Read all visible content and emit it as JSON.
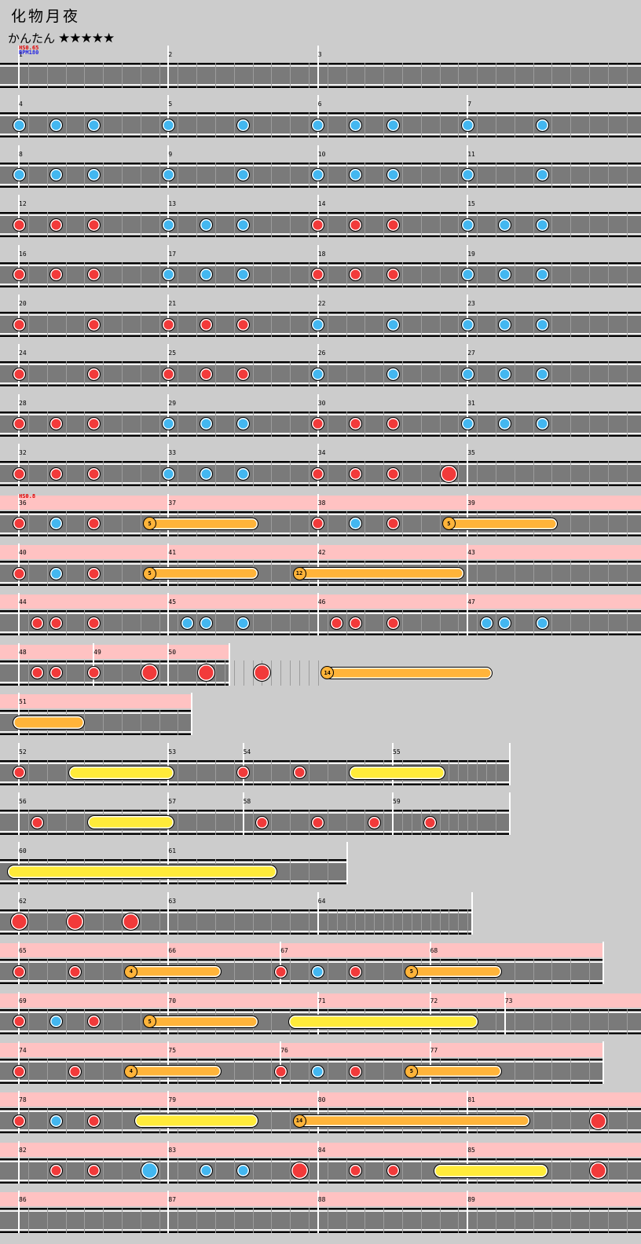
{
  "song": {
    "title": "化物月夜",
    "difficulty": "かんたん",
    "stars": "★★★★★"
  },
  "colors": {
    "don": "#f23a3a",
    "ka": "#43b7f0",
    "roll": "#ffeb3a",
    "balloon": "#ffb43a",
    "gogo": "#ffc2c2"
  },
  "rows": [
    {
      "bars": [
        1,
        2,
        3
      ],
      "events": [
        {
          "text": "HS0.65",
          "color": "#e00000"
        },
        {
          "text": "BPM180",
          "color": "#2020e0"
        }
      ],
      "notes": []
    },
    {
      "bars": [
        4,
        5,
        6,
        7
      ],
      "notes": [
        {
          "t": "k",
          "b": 0
        },
        {
          "t": "k",
          "b": 2
        },
        {
          "t": "k",
          "b": 4
        },
        {
          "t": "k",
          "b": 8
        },
        {
          "t": "k",
          "b": 12
        },
        {
          "t": "k",
          "b": 16
        },
        {
          "t": "k",
          "b": 18
        },
        {
          "t": "k",
          "b": 20
        },
        {
          "t": "k",
          "b": 24
        },
        {
          "t": "k",
          "b": 28
        }
      ]
    },
    {
      "bars": [
        8,
        9,
        10,
        11
      ],
      "notes": [
        {
          "t": "k",
          "b": 0
        },
        {
          "t": "k",
          "b": 2
        },
        {
          "t": "k",
          "b": 4
        },
        {
          "t": "k",
          "b": 8
        },
        {
          "t": "k",
          "b": 12
        },
        {
          "t": "k",
          "b": 16
        },
        {
          "t": "k",
          "b": 18
        },
        {
          "t": "k",
          "b": 20
        },
        {
          "t": "k",
          "b": 24
        },
        {
          "t": "k",
          "b": 28
        }
      ]
    },
    {
      "bars": [
        12,
        13,
        14,
        15
      ],
      "notes": [
        {
          "t": "d",
          "b": 0
        },
        {
          "t": "d",
          "b": 2
        },
        {
          "t": "d",
          "b": 4
        },
        {
          "t": "k",
          "b": 8
        },
        {
          "t": "k",
          "b": 10
        },
        {
          "t": "k",
          "b": 12
        },
        {
          "t": "d",
          "b": 16
        },
        {
          "t": "d",
          "b": 18
        },
        {
          "t": "d",
          "b": 20
        },
        {
          "t": "k",
          "b": 24
        },
        {
          "t": "k",
          "b": 26
        },
        {
          "t": "k",
          "b": 28
        }
      ]
    },
    {
      "bars": [
        16,
        17,
        18,
        19
      ],
      "notes": [
        {
          "t": "d",
          "b": 0
        },
        {
          "t": "d",
          "b": 2
        },
        {
          "t": "d",
          "b": 4
        },
        {
          "t": "k",
          "b": 8
        },
        {
          "t": "k",
          "b": 10
        },
        {
          "t": "k",
          "b": 12
        },
        {
          "t": "d",
          "b": 16
        },
        {
          "t": "d",
          "b": 18
        },
        {
          "t": "d",
          "b": 20
        },
        {
          "t": "k",
          "b": 24
        },
        {
          "t": "k",
          "b": 26
        },
        {
          "t": "k",
          "b": 28
        }
      ]
    },
    {
      "bars": [
        20,
        21,
        22,
        23
      ],
      "notes": [
        {
          "t": "d",
          "b": 0
        },
        {
          "t": "d",
          "b": 4
        },
        {
          "t": "d",
          "b": 8
        },
        {
          "t": "d",
          "b": 10
        },
        {
          "t": "d",
          "b": 12
        },
        {
          "t": "k",
          "b": 16
        },
        {
          "t": "k",
          "b": 20
        },
        {
          "t": "k",
          "b": 24
        },
        {
          "t": "k",
          "b": 26
        },
        {
          "t": "k",
          "b": 28
        }
      ]
    },
    {
      "bars": [
        24,
        25,
        26,
        27
      ],
      "notes": [
        {
          "t": "d",
          "b": 0
        },
        {
          "t": "d",
          "b": 4
        },
        {
          "t": "d",
          "b": 8
        },
        {
          "t": "d",
          "b": 10
        },
        {
          "t": "d",
          "b": 12
        },
        {
          "t": "k",
          "b": 16
        },
        {
          "t": "k",
          "b": 20
        },
        {
          "t": "k",
          "b": 24
        },
        {
          "t": "k",
          "b": 26
        },
        {
          "t": "k",
          "b": 28
        }
      ]
    },
    {
      "bars": [
        28,
        29,
        30,
        31
      ],
      "notes": [
        {
          "t": "d",
          "b": 0
        },
        {
          "t": "d",
          "b": 2
        },
        {
          "t": "d",
          "b": 4
        },
        {
          "t": "k",
          "b": 8
        },
        {
          "t": "k",
          "b": 10
        },
        {
          "t": "k",
          "b": 12
        },
        {
          "t": "d",
          "b": 16
        },
        {
          "t": "d",
          "b": 18
        },
        {
          "t": "d",
          "b": 20
        },
        {
          "t": "k",
          "b": 24
        },
        {
          "t": "k",
          "b": 26
        },
        {
          "t": "k",
          "b": 28
        }
      ]
    },
    {
      "bars": [
        32,
        33,
        34,
        35
      ],
      "notes": [
        {
          "t": "d",
          "b": 0
        },
        {
          "t": "d",
          "b": 2
        },
        {
          "t": "d",
          "b": 4
        },
        {
          "t": "k",
          "b": 8
        },
        {
          "t": "k",
          "b": 10
        },
        {
          "t": "k",
          "b": 12
        },
        {
          "t": "d",
          "b": 16
        },
        {
          "t": "d",
          "b": 18
        },
        {
          "t": "d",
          "b": 20
        },
        {
          "t": "D",
          "b": 23
        }
      ]
    },
    {
      "bars": [
        36,
        37,
        38,
        39
      ],
      "gogo": true,
      "events": [
        {
          "text": "HS0.8",
          "color": "#e00000"
        }
      ],
      "notes": [
        {
          "t": "d",
          "b": 0
        },
        {
          "t": "k",
          "b": 2
        },
        {
          "t": "d",
          "b": 4
        },
        {
          "t": "balloon",
          "b": 7,
          "end": 12.5,
          "count": "5"
        },
        {
          "t": "d",
          "b": 16
        },
        {
          "t": "k",
          "b": 18
        },
        {
          "t": "d",
          "b": 20
        },
        {
          "t": "balloon",
          "b": 23,
          "end": 28.5,
          "count": "5"
        }
      ]
    },
    {
      "bars": [
        40,
        41,
        42,
        43
      ],
      "gogo": true,
      "notes": [
        {
          "t": "d",
          "b": 0
        },
        {
          "t": "k",
          "b": 2
        },
        {
          "t": "d",
          "b": 4
        },
        {
          "t": "balloon",
          "b": 7,
          "end": 12.5,
          "count": "5"
        },
        {
          "t": "balloon",
          "b": 15,
          "end": 23.5,
          "count": "12"
        }
      ]
    },
    {
      "bars": [
        44,
        45,
        46,
        47
      ],
      "gogo": true,
      "notes": [
        {
          "t": "d",
          "b": 1
        },
        {
          "t": "d",
          "b": 2
        },
        {
          "t": "d",
          "b": 4
        },
        {
          "t": "k",
          "b": 9
        },
        {
          "t": "k",
          "b": 10
        },
        {
          "t": "k",
          "b": 12
        },
        {
          "t": "d",
          "b": 17
        },
        {
          "t": "d",
          "b": 18
        },
        {
          "t": "d",
          "b": 20
        },
        {
          "t": "k",
          "b": 25
        },
        {
          "t": "k",
          "b": 26
        },
        {
          "t": "k",
          "b": 28
        }
      ]
    },
    {
      "bars": [
        48,
        49,
        50
      ],
      "gogo": true,
      "lengths": [
        4,
        4,
        0
      ],
      "rowBeats": 11.2,
      "dense": [
        [
          9.5,
          16
        ]
      ],
      "notes": [
        {
          "t": "d",
          "b": 1
        },
        {
          "t": "d",
          "b": 2
        },
        {
          "t": "d",
          "b": 4
        },
        {
          "t": "D",
          "b": 7
        },
        {
          "t": "D",
          "b": 10
        },
        {
          "t": "D",
          "b": 13
        },
        {
          "t": "balloon",
          "b": 16.5,
          "end": 25,
          "count": "14"
        }
      ]
    },
    {
      "bars": [
        51
      ],
      "gogo": true,
      "rowBeats": 9.2,
      "notes": [
        {
          "t": "oroll",
          "b": 0,
          "end": 3.2
        }
      ]
    },
    {
      "bars": [
        52,
        53,
        54,
        55
      ],
      "lengths": [
        8,
        4,
        8,
        5
      ],
      "rowBeats": 26.2,
      "dense": [
        [
          22,
          25
        ]
      ],
      "notes": [
        {
          "t": "d",
          "b": 0
        },
        {
          "t": "yroll",
          "b": 3,
          "end": 8
        },
        {
          "t": "d",
          "b": 12
        },
        {
          "t": "d",
          "b": 15
        },
        {
          "t": "yroll",
          "b": 18,
          "end": 22.5
        }
      ]
    },
    {
      "bars": [
        56,
        57,
        58,
        59
      ],
      "lengths": [
        8,
        4,
        8,
        5
      ],
      "rowBeats": 26.2,
      "dense": [
        [
          20.5,
          24.5
        ]
      ],
      "notes": [
        {
          "t": "d",
          "b": 1
        },
        {
          "t": "yroll",
          "b": 4,
          "end": 8
        },
        {
          "t": "d",
          "b": 13
        },
        {
          "t": "d",
          "b": 16
        },
        {
          "t": "d",
          "b": 19
        },
        {
          "t": "d",
          "b": 22
        }
      ]
    },
    {
      "bars": [
        60,
        61
      ],
      "lengths": [
        8,
        0
      ],
      "rowBeats": 17.5,
      "notes": [
        {
          "t": "yroll",
          "b": -0.3,
          "end": 13.5
        }
      ]
    },
    {
      "bars": [
        62,
        63,
        64
      ],
      "lengths": [
        8,
        8,
        8
      ],
      "rowBeats": 24.2,
      "dense": [
        [
          16.5,
          24
        ]
      ],
      "notes": [
        {
          "t": "D",
          "b": 0
        },
        {
          "t": "D",
          "b": 3
        },
        {
          "t": "D",
          "b": 6
        }
      ]
    },
    {
      "bars": [
        65,
        66,
        67,
        68
      ],
      "gogo": true,
      "lengths": [
        8,
        6,
        8,
        8
      ],
      "rowBeats": 31.2,
      "notes": [
        {
          "t": "d",
          "b": 0
        },
        {
          "t": "d",
          "b": 3
        },
        {
          "t": "balloon",
          "b": 6,
          "end": 10.5,
          "count": "4"
        },
        {
          "t": "d",
          "b": 14
        },
        {
          "t": "k",
          "b": 16
        },
        {
          "t": "d",
          "b": 18
        },
        {
          "t": "balloon",
          "b": 21,
          "end": 25.5,
          "count": "5"
        }
      ]
    },
    {
      "bars": [
        69,
        70,
        71,
        72,
        73
      ],
      "gogo": true,
      "lengths": [
        8,
        8,
        6,
        4,
        6
      ],
      "notes": [
        {
          "t": "d",
          "b": 0
        },
        {
          "t": "k",
          "b": 2
        },
        {
          "t": "d",
          "b": 4
        },
        {
          "t": "balloon",
          "b": 7,
          "end": 12.5,
          "count": "5"
        },
        {
          "t": "yroll",
          "b": 14.75,
          "end": 24.25
        }
      ]
    },
    {
      "bars": [
        74,
        75,
        76,
        77
      ],
      "gogo": true,
      "lengths": [
        8,
        6,
        8,
        8
      ],
      "rowBeats": 31.2,
      "notes": [
        {
          "t": "d",
          "b": 0
        },
        {
          "t": "d",
          "b": 3
        },
        {
          "t": "balloon",
          "b": 6,
          "end": 10.5,
          "count": "4"
        },
        {
          "t": "d",
          "b": 14
        },
        {
          "t": "k",
          "b": 16
        },
        {
          "t": "d",
          "b": 18
        },
        {
          "t": "balloon",
          "b": 21,
          "end": 25.5,
          "count": "5"
        }
      ]
    },
    {
      "bars": [
        78,
        79,
        80,
        81
      ],
      "gogo": true,
      "notes": [
        {
          "t": "d",
          "b": 0
        },
        {
          "t": "k",
          "b": 2
        },
        {
          "t": "d",
          "b": 4
        },
        {
          "t": "yroll",
          "b": 6.5,
          "end": 12.5
        },
        {
          "t": "balloon",
          "b": 15,
          "end": 27,
          "count": "14"
        },
        {
          "t": "D",
          "b": 31
        }
      ]
    },
    {
      "bars": [
        82,
        83,
        84,
        85
      ],
      "gogo": true,
      "notes": [
        {
          "t": "d",
          "b": 2
        },
        {
          "t": "d",
          "b": 4
        },
        {
          "t": "K",
          "b": 7
        },
        {
          "t": "k",
          "b": 10
        },
        {
          "t": "k",
          "b": 12
        },
        {
          "t": "D",
          "b": 15
        },
        {
          "t": "d",
          "b": 18
        },
        {
          "t": "d",
          "b": 20
        },
        {
          "t": "yroll",
          "b": 22.5,
          "end": 28
        },
        {
          "t": "D",
          "b": 31
        }
      ]
    },
    {
      "bars": [
        86,
        87,
        88,
        89
      ],
      "gogo": true,
      "notes": []
    }
  ]
}
